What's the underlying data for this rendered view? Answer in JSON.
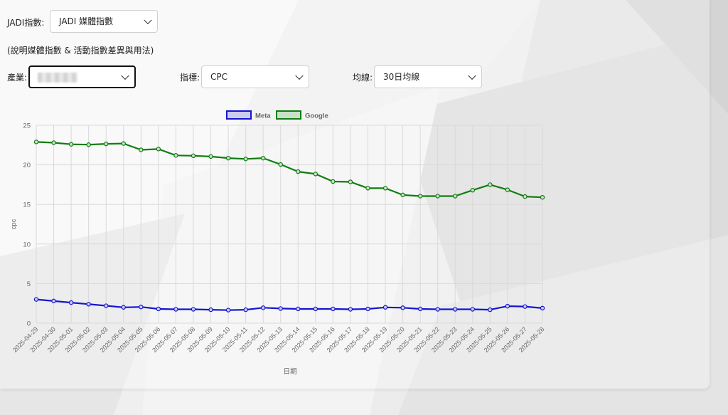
{
  "filters": {
    "jadi_label": "JADI指數:",
    "jadi_value": "JADI 媒體指數",
    "explain_link": "(說明媒體指數 & 活動指數差異與用法)",
    "industry_label": "產業:",
    "industry_value": "",
    "metric_label": "指標:",
    "metric_value": "CPC",
    "ma_label": "均線:",
    "ma_value": "30日均線"
  },
  "icons": {
    "dropdown": "chevron-down-icon"
  },
  "chart_data": {
    "type": "line",
    "title": "",
    "xlabel": "日期",
    "ylabel": "cpc",
    "ylim": [
      0,
      25
    ],
    "yticks": [
      0,
      5,
      10,
      15,
      20,
      25
    ],
    "legend_position": "top-center",
    "grid": true,
    "x": [
      "2025-04-29",
      "2025-04-30",
      "2025-05-01",
      "2025-05-02",
      "2025-05-03",
      "2025-05-04",
      "2025-05-05",
      "2025-05-06",
      "2025-05-07",
      "2025-05-08",
      "2025-05-09",
      "2025-05-10",
      "2025-05-11",
      "2025-05-12",
      "2025-05-13",
      "2025-05-14",
      "2025-05-15",
      "2025-05-16",
      "2025-05-17",
      "2025-05-18",
      "2025-05-19",
      "2025-05-20",
      "2025-05-21",
      "2025-05-22",
      "2025-05-23",
      "2025-05-24",
      "2025-05-25",
      "2025-05-26",
      "2025-05-27",
      "2025-05-28"
    ],
    "series": [
      {
        "name": "Meta",
        "color": "#1414d2",
        "fill": "#ccccf0",
        "values": [
          3.0,
          2.8,
          2.6,
          2.4,
          2.2,
          2.0,
          2.05,
          1.8,
          1.75,
          1.75,
          1.7,
          1.65,
          1.7,
          1.95,
          1.85,
          1.8,
          1.8,
          1.8,
          1.75,
          1.8,
          2.0,
          1.95,
          1.8,
          1.75,
          1.75,
          1.75,
          1.7,
          2.15,
          2.1,
          1.9
        ]
      },
      {
        "name": "Google",
        "color": "#0f7d0f",
        "fill": "#c8e0c8",
        "values": [
          22.9,
          22.8,
          22.6,
          22.55,
          22.65,
          22.7,
          21.9,
          22.0,
          21.2,
          21.15,
          21.05,
          20.85,
          20.75,
          20.85,
          20.05,
          19.15,
          18.85,
          17.9,
          17.85,
          17.05,
          17.05,
          16.2,
          16.05,
          16.05,
          16.05,
          16.8,
          17.5,
          16.85,
          16.0,
          15.9
        ]
      }
    ]
  }
}
